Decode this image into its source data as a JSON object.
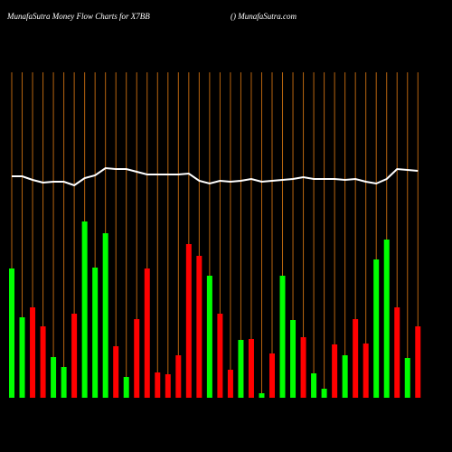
{
  "chart_data": {
    "type": "bar",
    "title": "MunafaSutra  Money Flow  Charts for X7BB",
    "subtitle": "() MunafaSutra.com",
    "categories": [
      null,
      null,
      null,
      null,
      null,
      null,
      null,
      null,
      null,
      null,
      null,
      null,
      null,
      null,
      null,
      null,
      null,
      null,
      null,
      null,
      null,
      null,
      null,
      null,
      null,
      null,
      null,
      null,
      null,
      null,
      null,
      null,
      null,
      null,
      null,
      null,
      null,
      null,
      null,
      null
    ],
    "values": [
      143,
      89,
      100,
      79,
      45,
      34,
      93,
      195,
      144,
      182,
      57,
      23,
      87,
      143,
      28,
      26,
      47,
      170,
      157,
      135,
      93,
      31,
      64,
      65,
      5,
      49,
      135,
      86,
      67,
      27,
      10,
      59,
      47,
      87,
      60,
      153,
      175,
      100,
      44,
      79
    ],
    "colors": [
      "#00ff00",
      "#00ff00",
      "#ff0000",
      "#ff0000",
      "#00ff00",
      "#00ff00",
      "#ff0000",
      "#00ff00",
      "#00ff00",
      "#00ff00",
      "#ff0000",
      "#00ff00",
      "#ff0000",
      "#ff0000",
      "#ff0000",
      "#ff0000",
      "#ff0000",
      "#ff0000",
      "#ff0000",
      "#00ff00",
      "#ff0000",
      "#ff0000",
      "#00ff00",
      "#ff0000",
      "#00ff00",
      "#ff0000",
      "#00ff00",
      "#00ff00",
      "#ff0000",
      "#00ff00",
      "#00ff00",
      "#ff0000",
      "#00ff00",
      "#ff0000",
      "#ff0000",
      "#00ff00",
      "#00ff00",
      "#ff0000",
      "#00ff00",
      "#ff0000"
    ],
    "line": {
      "color": "#ffffff",
      "values": [
        245,
        245,
        241,
        238,
        239,
        239,
        235,
        243,
        246,
        254,
        253,
        253,
        250,
        247,
        247,
        247,
        247,
        248,
        240,
        237,
        240,
        239,
        240,
        242,
        239,
        240,
        241,
        242,
        244,
        242,
        242,
        242,
        241,
        242,
        239,
        237,
        242,
        253,
        252,
        251
      ]
    },
    "ylim": [
      0,
      360
    ],
    "grid_color": "#b8650f"
  }
}
